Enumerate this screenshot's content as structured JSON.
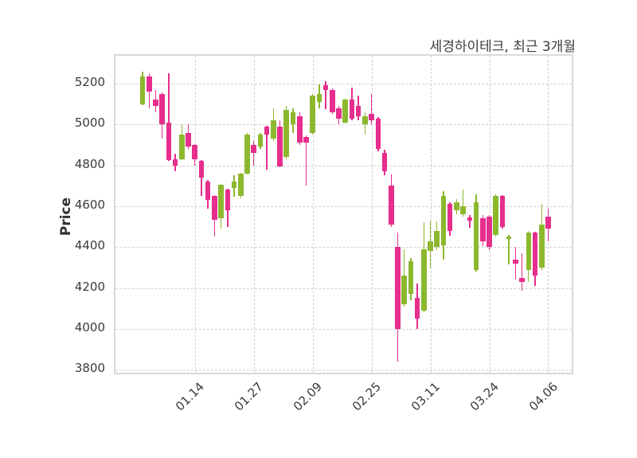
{
  "title": "세경하이테크, 최근 3개월",
  "ylabel": "Price",
  "chart_data": {
    "type": "candlestick",
    "title": "세경하이테크, 최근 3개월",
    "xlabel": "",
    "ylabel": "Price",
    "grid": "dashed",
    "legend": "none",
    "ylim": [
      3770,
      5336
    ],
    "y_ticks": [
      3800,
      4000,
      4200,
      4400,
      4600,
      4800,
      5000,
      5200
    ],
    "x_tick_labels": [
      "01.14",
      "01.27",
      "02.09",
      "02.25",
      "03.11",
      "03.24",
      "04.06"
    ],
    "x_tick_indices": [
      8,
      17,
      26,
      35,
      44,
      53,
      62
    ],
    "colors": {
      "up": "#8cb82e",
      "down": "#e62e8c",
      "grid": "#d2d2d2",
      "frame": "#d9d9d9",
      "text": "#3a3a3a"
    },
    "candles_format": [
      "open",
      "high",
      "low",
      "close"
    ],
    "candles": [
      [
        5100,
        5260,
        5095,
        5235
      ],
      [
        5235,
        5250,
        5080,
        5160
      ],
      [
        5120,
        5170,
        5060,
        5090
      ],
      [
        5150,
        5155,
        4930,
        5000
      ],
      [
        5010,
        5250,
        4820,
        4825
      ],
      [
        4830,
        4855,
        4770,
        4800
      ],
      [
        4830,
        5000,
        4825,
        4950
      ],
      [
        4960,
        5000,
        4880,
        4890
      ],
      [
        4900,
        4905,
        4800,
        4830
      ],
      [
        4820,
        4825,
        4650,
        4740
      ],
      [
        4720,
        4730,
        4590,
        4630
      ],
      [
        4650,
        4655,
        4450,
        4535
      ],
      [
        4540,
        4710,
        4490,
        4705
      ],
      [
        4680,
        4685,
        4500,
        4580
      ],
      [
        4690,
        4750,
        4645,
        4720
      ],
      [
        4650,
        4765,
        4640,
        4760
      ],
      [
        4760,
        4960,
        4755,
        4950
      ],
      [
        4900,
        4920,
        4800,
        4860
      ],
      [
        4890,
        4960,
        4880,
        4950
      ],
      [
        4990,
        4995,
        4780,
        4950
      ],
      [
        4930,
        5080,
        4920,
        5020
      ],
      [
        4990,
        5020,
        4790,
        4795
      ],
      [
        4840,
        5090,
        4830,
        5070
      ],
      [
        5000,
        5080,
        4960,
        5060
      ],
      [
        5040,
        5060,
        4900,
        4910
      ],
      [
        4940,
        4945,
        4700,
        4910
      ],
      [
        4960,
        5150,
        4950,
        5140
      ],
      [
        5110,
        5195,
        5080,
        5150
      ],
      [
        5190,
        5210,
        5075,
        5170
      ],
      [
        5170,
        5175,
        5050,
        5060
      ],
      [
        5080,
        5090,
        5000,
        5030
      ],
      [
        5010,
        5125,
        5005,
        5120
      ],
      [
        5120,
        5180,
        5020,
        5030
      ],
      [
        5090,
        5140,
        5020,
        5040
      ],
      [
        5000,
        5060,
        4950,
        5040
      ],
      [
        5050,
        5150,
        5000,
        5020
      ],
      [
        5030,
        5035,
        4870,
        4880
      ],
      [
        4860,
        4875,
        4750,
        4770
      ],
      [
        4700,
        4755,
        4500,
        4510
      ],
      [
        4400,
        4470,
        3840,
        4000
      ],
      [
        4120,
        4390,
        4110,
        4260
      ],
      [
        4170,
        4345,
        4140,
        4330
      ],
      [
        4150,
        4220,
        4000,
        4050
      ],
      [
        4090,
        4520,
        4080,
        4390
      ],
      [
        4380,
        4530,
        4300,
        4430
      ],
      [
        4400,
        4525,
        4385,
        4480
      ],
      [
        4410,
        4675,
        4340,
        4650
      ],
      [
        4610,
        4620,
        4455,
        4480
      ],
      [
        4580,
        4635,
        4560,
        4620
      ],
      [
        4560,
        4680,
        4550,
        4600
      ],
      [
        4545,
        4555,
        4495,
        4530
      ],
      [
        4290,
        4660,
        4280,
        4620
      ],
      [
        4540,
        4555,
        4405,
        4430
      ],
      [
        4550,
        4555,
        4385,
        4400
      ],
      [
        4460,
        4660,
        4450,
        4650
      ],
      [
        4650,
        4655,
        4490,
        4500
      ],
      [
        4440,
        4460,
        4315,
        4450
      ],
      [
        4340,
        4400,
        4240,
        4320
      ],
      [
        4250,
        4370,
        4185,
        4230
      ],
      [
        4290,
        4480,
        4230,
        4470
      ],
      [
        4470,
        4475,
        4210,
        4260
      ],
      [
        4300,
        4610,
        4290,
        4510
      ],
      [
        4550,
        4590,
        4430,
        4490
      ]
    ]
  }
}
